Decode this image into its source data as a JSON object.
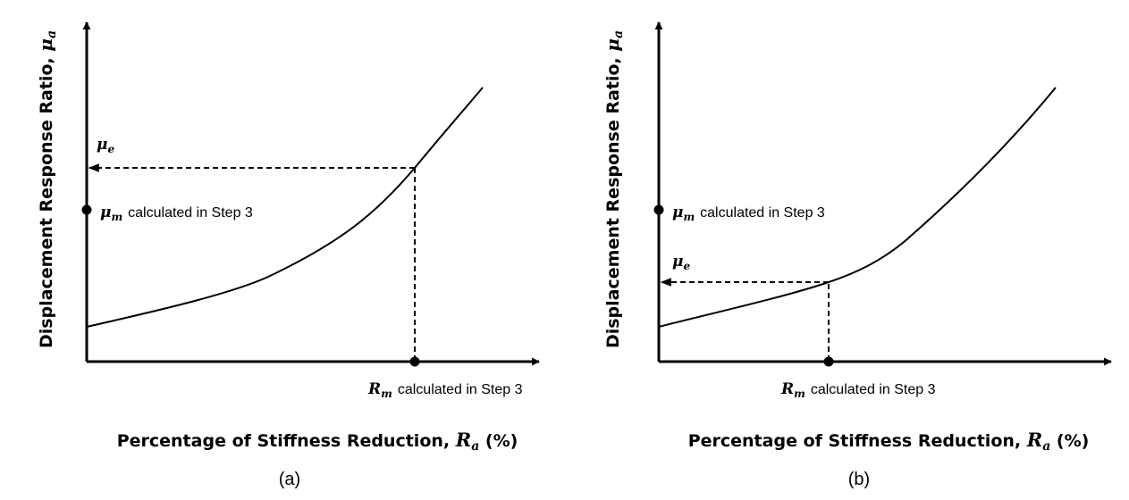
{
  "panels": [
    {
      "caption": "(a)",
      "y_axis_title": "Displacement Response Ratio, ",
      "y_axis_symbol": "μ",
      "y_axis_symbol_sub": "a",
      "x_axis_title": "Percentage of Stiffness Reduction, ",
      "x_axis_symbol": "R",
      "x_axis_symbol_sub": "a",
      "x_axis_unit": " (%)",
      "mu_e_symbol": "μ",
      "mu_e_sub": "e",
      "mu_m_symbol": "μ",
      "mu_m_sub": "m",
      "mu_m_note": "calculated in Step 3",
      "r_m_symbol": "R",
      "r_m_sub": "m",
      "r_m_note": "calculated in Step 3"
    },
    {
      "caption": "(b)",
      "y_axis_title": "Displacement Response Ratio, ",
      "y_axis_symbol": "μ",
      "y_axis_symbol_sub": "a",
      "x_axis_title": "Percentage of Stiffness Reduction, ",
      "x_axis_symbol": "R",
      "x_axis_symbol_sub": "a",
      "x_axis_unit": " (%)",
      "mu_e_symbol": "μ",
      "mu_e_sub": "e",
      "mu_m_symbol": "μ",
      "mu_m_sub": "m",
      "mu_m_note": "calculated in Step 3",
      "r_m_symbol": "R",
      "r_m_sub": "m",
      "r_m_note": "calculated in Step 3"
    }
  ],
  "colors": {
    "line": "#000000",
    "background": "#ffffff"
  }
}
